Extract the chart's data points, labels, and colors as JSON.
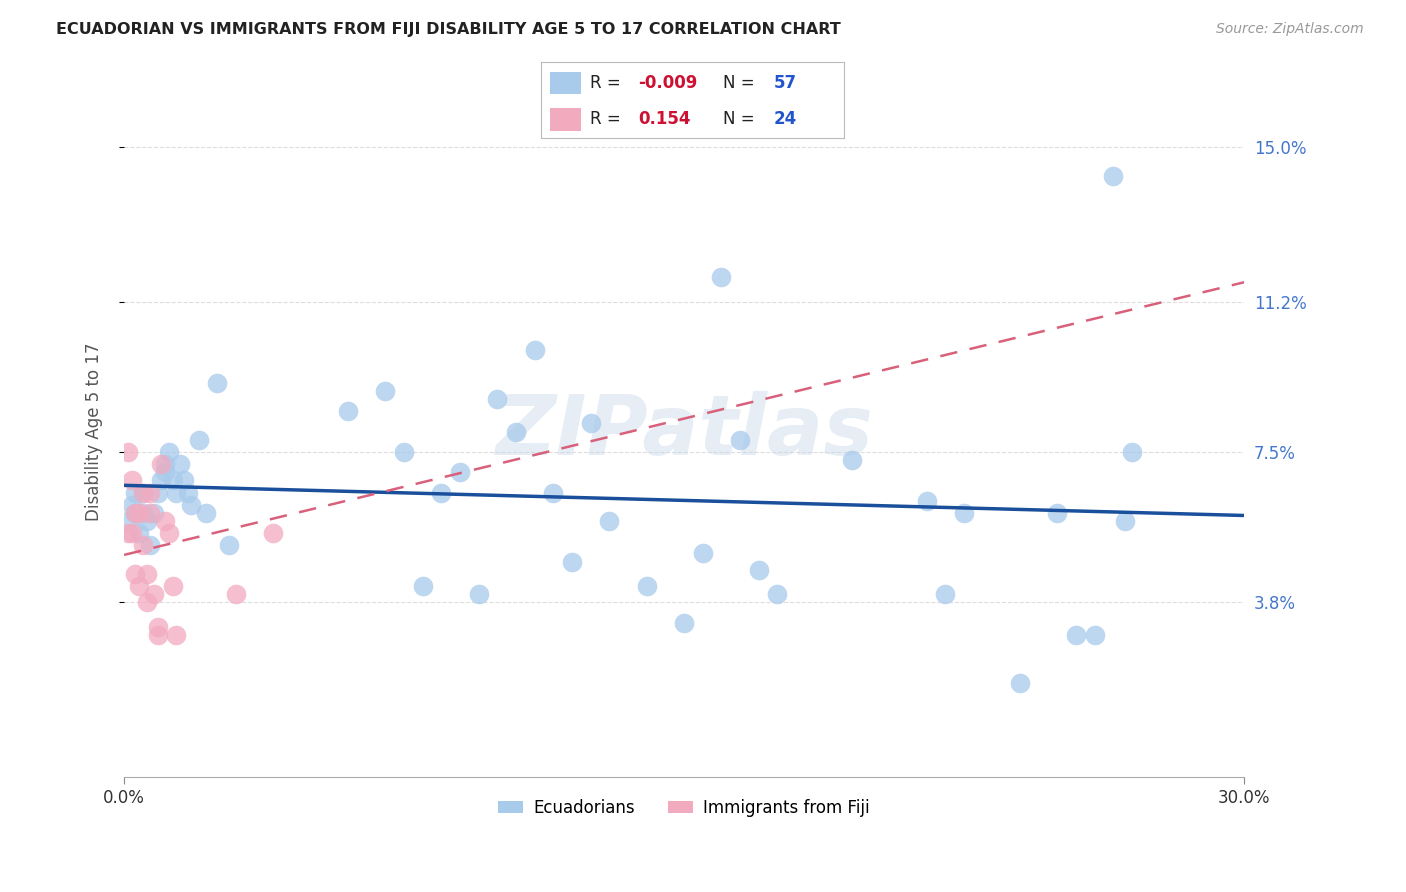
{
  "title": "ECUADORIAN VS IMMIGRANTS FROM FIJI DISABILITY AGE 5 TO 17 CORRELATION CHART",
  "source": "Source: ZipAtlas.com",
  "ylabel": "Disability Age 5 to 17",
  "xlim": [
    0.0,
    0.3
  ],
  "ylim": [
    -0.005,
    0.165
  ],
  "ytick_labels": [
    "3.8%",
    "7.5%",
    "11.2%",
    "15.0%"
  ],
  "ytick_values": [
    0.038,
    0.075,
    0.112,
    0.15
  ],
  "watermark": "ZIPatlas",
  "blue_color": "#A8CAEB",
  "pink_color": "#F2AABF",
  "blue_line_color": "#1A4F9C",
  "pink_line_color": "#D9607A",
  "background_color": "#FFFFFF",
  "grid_color": "#DDDDDD",
  "blue_x": [
    0.001,
    0.002,
    0.003,
    0.003,
    0.004,
    0.005,
    0.005,
    0.006,
    0.007,
    0.008,
    0.009,
    0.01,
    0.011,
    0.011,
    0.012,
    0.013,
    0.014,
    0.015,
    0.016,
    0.017,
    0.018,
    0.02,
    0.022,
    0.025,
    0.028,
    0.06,
    0.07,
    0.075,
    0.08,
    0.085,
    0.09,
    0.095,
    0.1,
    0.105,
    0.11,
    0.115,
    0.12,
    0.125,
    0.13,
    0.14,
    0.15,
    0.155,
    0.16,
    0.165,
    0.17,
    0.175,
    0.195,
    0.215,
    0.22,
    0.225,
    0.24,
    0.25,
    0.255,
    0.26,
    0.265,
    0.268,
    0.27
  ],
  "blue_y": [
    0.058,
    0.062,
    0.06,
    0.065,
    0.055,
    0.06,
    0.065,
    0.058,
    0.052,
    0.06,
    0.065,
    0.068,
    0.07,
    0.072,
    0.075,
    0.068,
    0.065,
    0.072,
    0.068,
    0.065,
    0.062,
    0.078,
    0.06,
    0.092,
    0.052,
    0.085,
    0.09,
    0.075,
    0.042,
    0.065,
    0.07,
    0.04,
    0.088,
    0.08,
    0.1,
    0.065,
    0.048,
    0.082,
    0.058,
    0.042,
    0.033,
    0.05,
    0.118,
    0.078,
    0.046,
    0.04,
    0.073,
    0.063,
    0.04,
    0.06,
    0.018,
    0.06,
    0.03,
    0.03,
    0.143,
    0.058,
    0.075
  ],
  "pink_x": [
    0.001,
    0.001,
    0.002,
    0.002,
    0.003,
    0.003,
    0.004,
    0.004,
    0.005,
    0.005,
    0.006,
    0.006,
    0.007,
    0.007,
    0.008,
    0.009,
    0.009,
    0.01,
    0.011,
    0.012,
    0.013,
    0.014,
    0.03,
    0.04
  ],
  "pink_y": [
    0.055,
    0.075,
    0.055,
    0.068,
    0.045,
    0.06,
    0.042,
    0.06,
    0.052,
    0.065,
    0.038,
    0.045,
    0.06,
    0.065,
    0.04,
    0.03,
    0.032,
    0.072,
    0.058,
    0.055,
    0.042,
    0.03,
    0.04,
    0.055
  ]
}
